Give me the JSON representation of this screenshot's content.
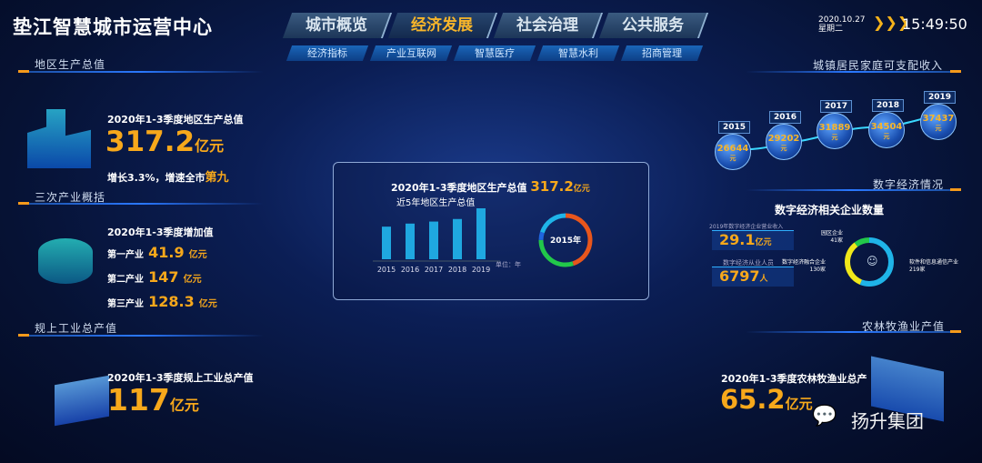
{
  "header": {
    "title": "垫江智慧城市运营中心",
    "date": "2020.10.27",
    "weekday": "星期二",
    "time": "15:49:50",
    "tabs": [
      {
        "label": "城市概览"
      },
      {
        "label": "经济发展",
        "active": true
      },
      {
        "label": "社会治理"
      },
      {
        "label": "公共服务"
      }
    ],
    "subtabs": [
      {
        "label": "经济指标"
      },
      {
        "label": "产业互联网"
      },
      {
        "label": "智慧医疗"
      },
      {
        "label": "智慧水利"
      },
      {
        "label": "招商管理"
      }
    ]
  },
  "gdp": {
    "section": "地区生产总值",
    "caption": "2020年1-3季度地区生产总值",
    "value": "317.2",
    "unit": "亿元",
    "growth": "增长3.3%，增速全市",
    "rank": "第九"
  },
  "tertiary": {
    "section": "三次产业概括",
    "caption": "2020年1-3季度增加值",
    "items": [
      {
        "label": "第一产业",
        "value": "41.9",
        "unit": "亿元"
      },
      {
        "label": "第二产业",
        "value": "147",
        "unit": "亿元"
      },
      {
        "label": "第三产业",
        "value": "128.3",
        "unit": "亿元"
      }
    ]
  },
  "industry": {
    "section": "规上工业总产值",
    "caption": "2020年1-3季度规上工业总产值",
    "value": "117",
    "unit": "亿元"
  },
  "center": {
    "title": "2020年1-3季度地区生产总值",
    "value": "317.2",
    "unit": "亿元",
    "subtitle": "近5年地区生产总值",
    "unit_note": "单位：年",
    "donut_label": "2015年"
  },
  "chart_data": [
    {
      "type": "bar",
      "title": "近5年地区生产总值",
      "categories": [
        "2015",
        "2016",
        "2017",
        "2018",
        "2019"
      ],
      "values": [
        64,
        70,
        74,
        79,
        100
      ],
      "color": "#1fa8e0"
    },
    {
      "type": "pie",
      "label": "2015年",
      "values": [
        45,
        30,
        5,
        20
      ],
      "colors": [
        "#e8561c",
        "#22c84a",
        "#1f66e0",
        "#1fb4e8"
      ]
    }
  ],
  "income": {
    "section": "城镇居民家庭可支配收入",
    "unit": "元",
    "items": [
      {
        "year": "2015",
        "value": "26644"
      },
      {
        "year": "2016",
        "value": "29202"
      },
      {
        "year": "2017",
        "value": "31889"
      },
      {
        "year": "2018",
        "value": "34504"
      },
      {
        "year": "2019",
        "value": "37437"
      }
    ]
  },
  "digital": {
    "section": "数字经济情况",
    "title": "数字经济相关企业数量",
    "revenue_label": "2019年数字经济企业营业收入",
    "revenue": "29.1",
    "revenue_unit": "亿元",
    "staff_label": "数字经济从业人员",
    "staff": "6797",
    "staff_unit": "人",
    "segments": [
      {
        "label": "园区企业",
        "value": "41",
        "unit": "家",
        "color": "#22c84a"
      },
      {
        "label": "数字经济融合企业",
        "value": "130",
        "unit": "家",
        "color": "#f0e81a"
      },
      {
        "label": "软件和信息通信产业",
        "value": "219",
        "unit": "家",
        "color": "#1fb4e8"
      }
    ]
  },
  "agri": {
    "section": "农林牧渔业产值",
    "caption": "2020年1-3季度农林牧渔业总产",
    "value": "65.2",
    "unit": "亿元"
  },
  "watermark": "扬升集团"
}
